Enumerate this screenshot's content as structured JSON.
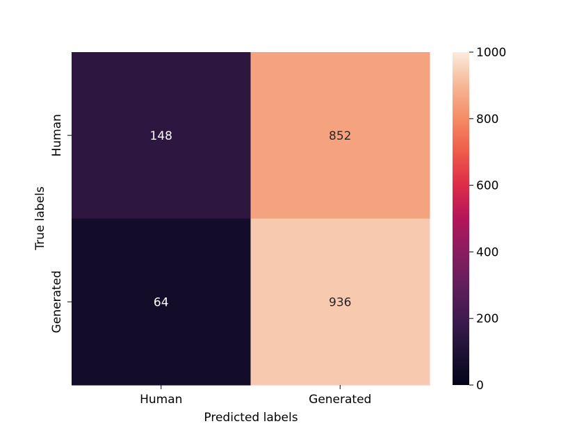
{
  "chart_data": {
    "type": "heatmap",
    "title": "",
    "xlabel": "Predicted labels",
    "ylabel": "True labels",
    "x_categories": [
      "Human",
      "Generated"
    ],
    "y_categories": [
      "Human",
      "Generated"
    ],
    "values": [
      [
        148,
        852
      ],
      [
        64,
        936
      ]
    ],
    "value_labels": [
      [
        "148",
        "852"
      ],
      [
        "64",
        "936"
      ]
    ],
    "colorbar": {
      "range": [
        0,
        1000
      ],
      "ticks": [
        0,
        200,
        400,
        600,
        800,
        1000
      ],
      "tick_labels": [
        "0",
        "200",
        "400",
        "600",
        "800",
        "1000"
      ],
      "colormap": "rocket"
    },
    "grid": false
  }
}
